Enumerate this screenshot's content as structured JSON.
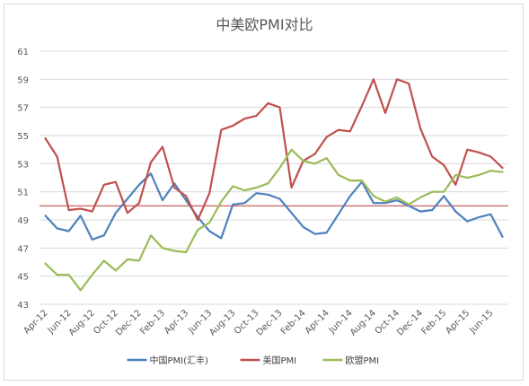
{
  "chart_data": {
    "type": "line",
    "title": "中美欧PMI对比",
    "xlabel": "",
    "ylabel": "",
    "ylim": [
      43,
      61
    ],
    "yticks": [
      43,
      45,
      47,
      49,
      51,
      53,
      55,
      57,
      59,
      61
    ],
    "grid": true,
    "legend_position": "bottom",
    "x": [
      "Apr-12",
      "May-12",
      "Jun-12",
      "Jul-12",
      "Aug-12",
      "Sep-12",
      "Oct-12",
      "Nov-12",
      "Dec-12",
      "Jan-13",
      "Feb-13",
      "Mar-13",
      "Apr-13",
      "May-13",
      "Jun-13",
      "Jul-13",
      "Aug-13",
      "Sep-13",
      "Oct-13",
      "Nov-13",
      "Dec-13",
      "Jan-14",
      "Feb-14",
      "Mar-14",
      "Apr-14",
      "May-14",
      "Jun-14",
      "Jul-14",
      "Aug-14",
      "Sep-14",
      "Oct-14",
      "Nov-14",
      "Dec-14",
      "Jan-15",
      "Feb-15",
      "Mar-15",
      "Apr-15",
      "May-15",
      "Jun-15",
      "Jul-15"
    ],
    "x_tick_labels": [
      "Apr-12",
      "Jun-12",
      "Aug-12",
      "Oct-12",
      "Dec-12",
      "Feb-13",
      "Apr-13",
      "Jun-13",
      "Aug-13",
      "Oct-13",
      "Dec-13",
      "Feb-14",
      "Apr-14",
      "Jun-14",
      "Aug-14",
      "Oct-14",
      "Dec-14",
      "Feb-15",
      "Apr-15",
      "Jun-15"
    ],
    "reference_line": {
      "y": 50,
      "color": "#c0504d"
    },
    "series": [
      {
        "name": "中国PMI(汇丰)",
        "color": "#4f81bd",
        "values": [
          49.3,
          48.4,
          48.2,
          49.3,
          47.6,
          47.9,
          49.5,
          50.5,
          51.5,
          52.3,
          50.4,
          51.6,
          50.4,
          49.2,
          48.2,
          47.7,
          50.1,
          50.2,
          50.9,
          50.8,
          50.5,
          49.5,
          48.5,
          48.0,
          48.1,
          49.4,
          50.7,
          51.7,
          50.2,
          50.2,
          50.4,
          50.0,
          49.6,
          49.7,
          50.7,
          49.6,
          48.9,
          49.2,
          49.4,
          47.8
        ]
      },
      {
        "name": "美国PMI",
        "color": "#c0504d",
        "values": [
          54.8,
          53.5,
          49.7,
          49.8,
          49.6,
          51.5,
          51.7,
          49.5,
          50.2,
          53.1,
          54.2,
          51.3,
          50.7,
          49.0,
          50.9,
          55.4,
          55.7,
          56.2,
          56.4,
          57.3,
          57.0,
          51.3,
          53.2,
          53.7,
          54.9,
          55.4,
          55.3,
          57.1,
          59.0,
          56.6,
          59.0,
          58.7,
          55.5,
          53.5,
          52.9,
          51.5,
          54.0,
          53.8,
          53.5,
          52.7
        ]
      },
      {
        "name": "欧盟PMI",
        "color": "#9bbb59",
        "values": [
          45.9,
          45.1,
          45.1,
          44.0,
          45.1,
          46.1,
          45.4,
          46.2,
          46.1,
          47.9,
          47.0,
          46.8,
          46.7,
          48.3,
          48.8,
          50.3,
          51.4,
          51.1,
          51.3,
          51.6,
          52.7,
          54.0,
          53.2,
          53.0,
          53.4,
          52.2,
          51.8,
          51.8,
          50.7,
          50.3,
          50.6,
          50.1,
          50.6,
          51.0,
          51.0,
          52.2,
          52.0,
          52.2,
          52.5,
          52.4
        ]
      }
    ]
  }
}
